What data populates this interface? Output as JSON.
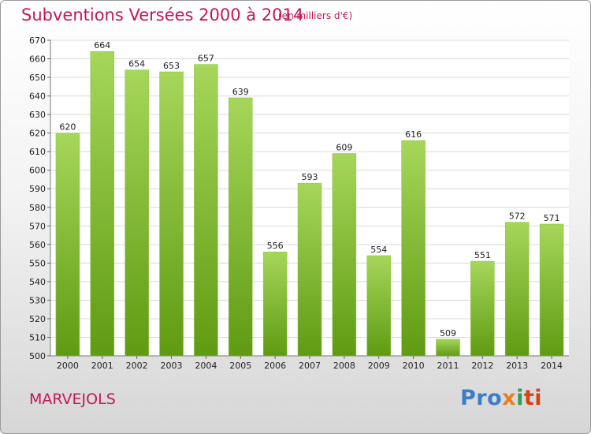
{
  "title": "Subventions Versées 2000 à 2014",
  "subtitle": "(en milliers d'€)",
  "commune": "MARVEJOLS",
  "logo": [
    "Pro",
    "x",
    "i",
    "ti"
  ],
  "colors": {
    "title": "#c2185b",
    "bar_top": "#a6d65a",
    "bar_bottom": "#5f9b12",
    "grid": "#d9d9d9"
  },
  "chart_data": {
    "type": "bar",
    "categories": [
      "2000",
      "2001",
      "2002",
      "2003",
      "2004",
      "2005",
      "2006",
      "2007",
      "2008",
      "2009",
      "2010",
      "2011",
      "2012",
      "2013",
      "2014"
    ],
    "values": [
      620,
      664,
      654,
      653,
      657,
      639,
      556,
      593,
      609,
      554,
      616,
      509,
      551,
      572,
      571
    ],
    "title": "Subventions Versées 2000 à 2014",
    "subtitle": "(en milliers d'€)",
    "ylim": [
      500,
      670
    ],
    "yticks": [
      500,
      510,
      520,
      530,
      540,
      550,
      560,
      570,
      580,
      590,
      600,
      610,
      620,
      630,
      640,
      650,
      660,
      670
    ],
    "grid": true
  }
}
